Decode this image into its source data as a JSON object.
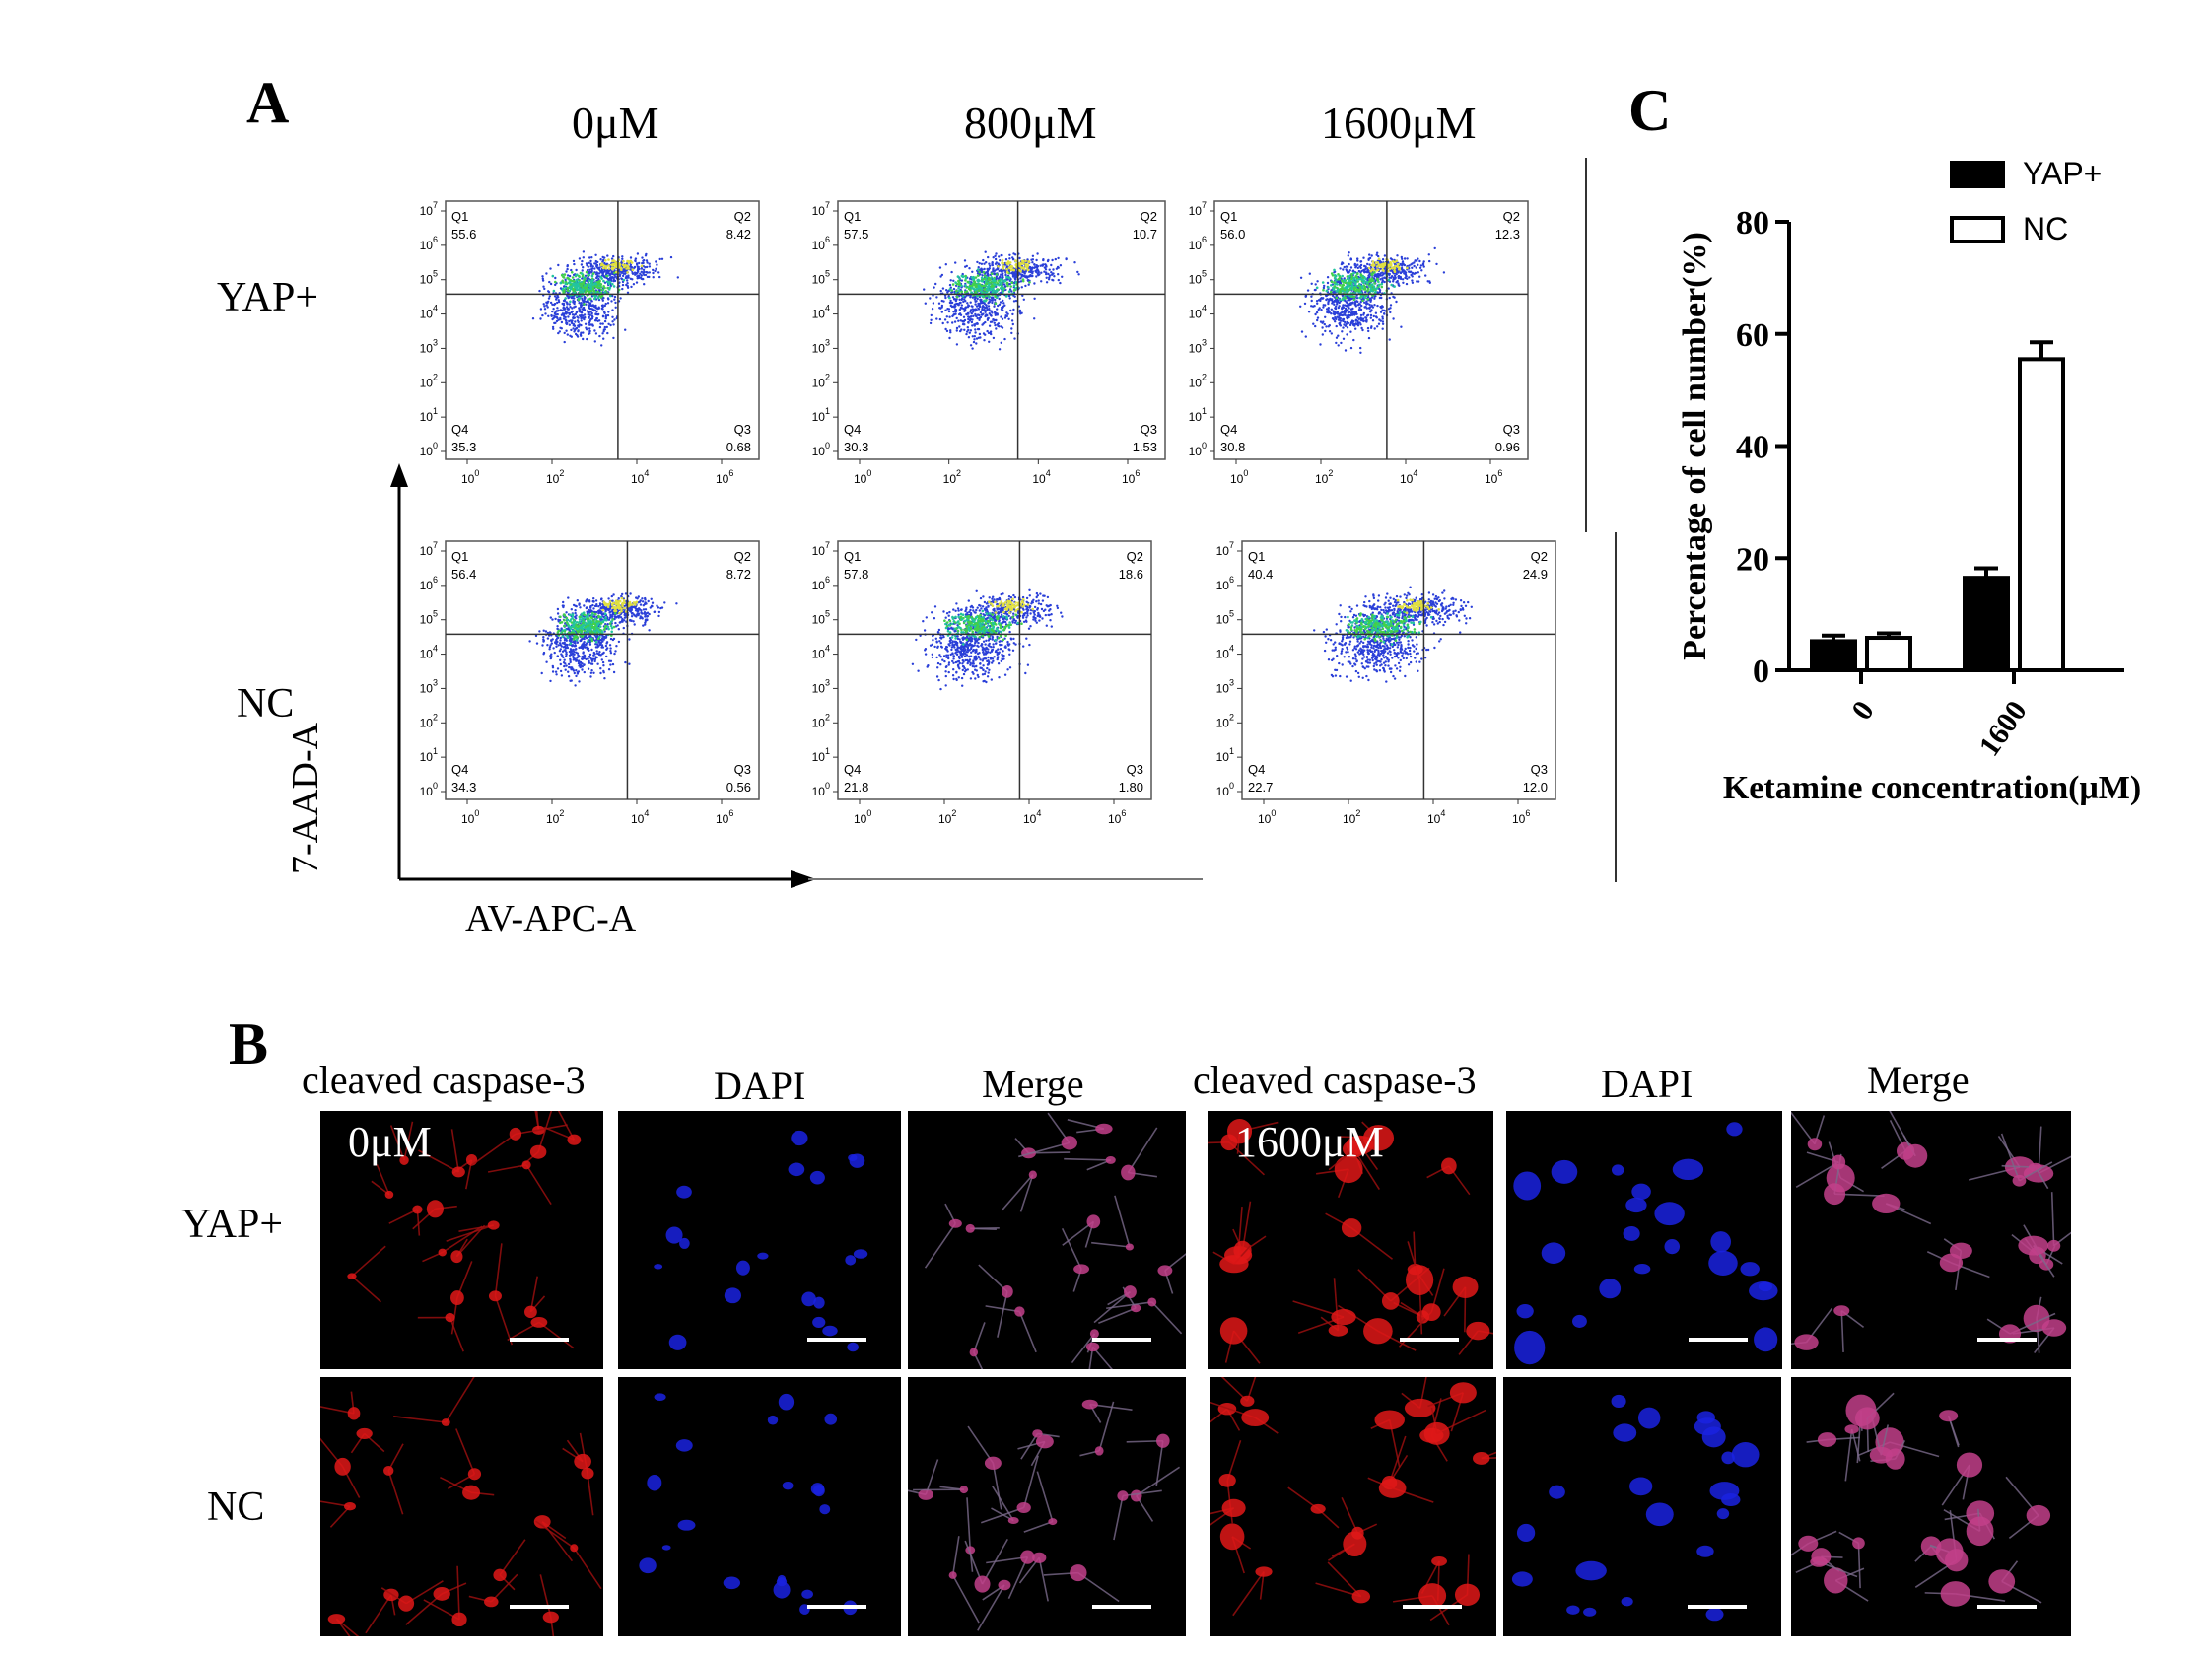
{
  "panel_a": {
    "letter": "A",
    "concentrations": [
      "0μM",
      "800μM",
      "1600μM"
    ],
    "rows": [
      "YAP+",
      "NC"
    ],
    "y_axis_label": "7-AAD-A",
    "x_axis_label": "AV-APC-A",
    "y_ticks": [
      "10",
      "10",
      "10",
      "10",
      "10",
      "10",
      "10",
      "10"
    ],
    "y_tick_exps": [
      "7",
      "6",
      "5",
      "4",
      "3",
      "2",
      "1",
      "0"
    ],
    "x_ticks": [
      "10",
      "10",
      "10",
      "10"
    ],
    "x_tick_exps": [
      "0",
      "2",
      "4",
      "6"
    ],
    "plots": [
      {
        "row": "YAP+",
        "conc": "0μM",
        "q1": "55.6",
        "q2": "8.42",
        "q3": "0.68",
        "q4": "35.3"
      },
      {
        "row": "YAP+",
        "conc": "800μM",
        "q1": "57.5",
        "q2": "10.7",
        "q3": "1.53",
        "q4": "30.3"
      },
      {
        "row": "YAP+",
        "conc": "1600μM",
        "q1": "56.0",
        "q2": "12.3",
        "q3": "0.96",
        "q4": "30.8"
      },
      {
        "row": "NC",
        "conc": "0μM",
        "q1": "56.4",
        "q2": "8.72",
        "q3": "0.56",
        "q4": "34.3"
      },
      {
        "row": "NC",
        "conc": "800μM",
        "q1": "57.8",
        "q2": "18.6",
        "q3": "1.80",
        "q4": "21.8"
      },
      {
        "row": "NC",
        "conc": "1600μM",
        "q1": "40.4",
        "q2": "24.9",
        "q3": "12.0",
        "q4": "22.7"
      }
    ]
  },
  "panel_b": {
    "letter": "B",
    "columns": [
      "cleaved caspase-3",
      "DAPI",
      "Merge",
      "cleaved caspase-3",
      "DAPI",
      "Merge"
    ],
    "rows": [
      "YAP+",
      "NC"
    ],
    "conc_left": "0μM",
    "conc_right": "1600μM",
    "colors": {
      "caspase": "#e01818",
      "dapi": "#1a22e0",
      "merge": "#c2408a"
    }
  },
  "panel_c": {
    "letter": "C",
    "chart_data": {
      "type": "bar",
      "categories": [
        "0",
        "1600"
      ],
      "series": [
        {
          "name": "YAP+",
          "values": [
            5.2,
            16.5
          ],
          "errors": [
            1.0,
            1.7
          ],
          "fill": "#000000"
        },
        {
          "name": "NC",
          "values": [
            5.8,
            55.5
          ],
          "errors": [
            0.8,
            3.0
          ],
          "fill": "#ffffff"
        }
      ],
      "xlabel": "Ketamine concentration(μM)",
      "ylabel": "Percentage of cell number(%)",
      "ylim": [
        0,
        80
      ],
      "yticks": [
        "0",
        "20",
        "40",
        "60",
        "80"
      ],
      "legend_position": "top-right",
      "grid": false
    }
  }
}
